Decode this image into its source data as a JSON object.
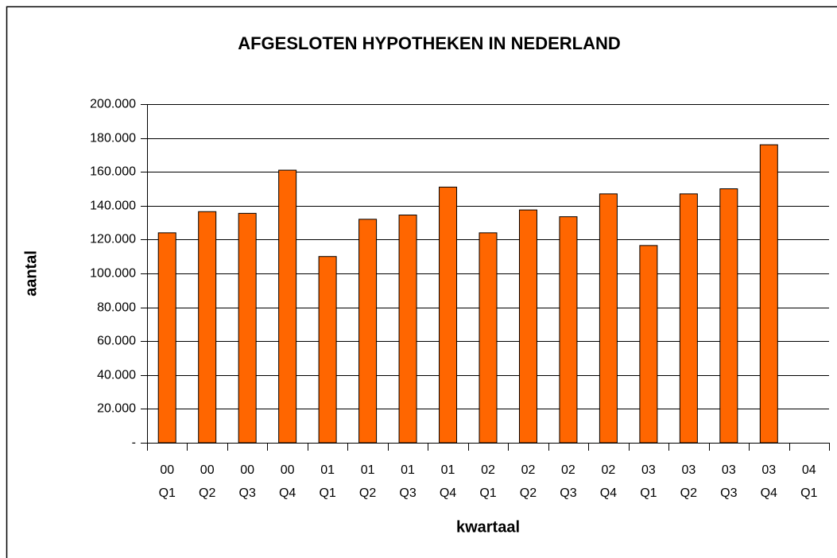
{
  "chart_data": {
    "type": "bar",
    "title": "AFGESLOTEN HYPOTHEKEN IN NEDERLAND",
    "x_label": "kwartaal",
    "y_label": "aantal",
    "categories": [
      [
        "00",
        "Q1"
      ],
      [
        "00",
        "Q2"
      ],
      [
        "00",
        "Q3"
      ],
      [
        "00",
        "Q4"
      ],
      [
        "01",
        "Q1"
      ],
      [
        "01",
        "Q2"
      ],
      [
        "01",
        "Q3"
      ],
      [
        "01",
        "Q4"
      ],
      [
        "02",
        "Q1"
      ],
      [
        "02",
        "Q2"
      ],
      [
        "02",
        "Q3"
      ],
      [
        "02",
        "Q4"
      ],
      [
        "03",
        "Q1"
      ],
      [
        "03",
        "Q2"
      ],
      [
        "03",
        "Q3"
      ],
      [
        "03",
        "Q4"
      ],
      [
        "04",
        "Q1"
      ]
    ],
    "values": [
      124000,
      136500,
      135500,
      161000,
      110000,
      132000,
      134500,
      151000,
      124000,
      137500,
      133500,
      147000,
      116500,
      147000,
      150000,
      176000,
      null
    ],
    "color": "#ff6600",
    "ylim": [
      0,
      200000
    ],
    "yticks": [
      {
        "value": 0,
        "label": "-"
      },
      {
        "value": 20000,
        "label": "20.000"
      },
      {
        "value": 40000,
        "label": "40.000"
      },
      {
        "value": 60000,
        "label": "60.000"
      },
      {
        "value": 80000,
        "label": "80.000"
      },
      {
        "value": 100000,
        "label": "100.000"
      },
      {
        "value": 120000,
        "label": "120.000"
      },
      {
        "value": 140000,
        "label": "140.000"
      },
      {
        "value": 160000,
        "label": "160.000"
      },
      {
        "value": 180000,
        "label": "180.000"
      },
      {
        "value": 200000,
        "label": "200.000"
      }
    ],
    "grid": true
  }
}
